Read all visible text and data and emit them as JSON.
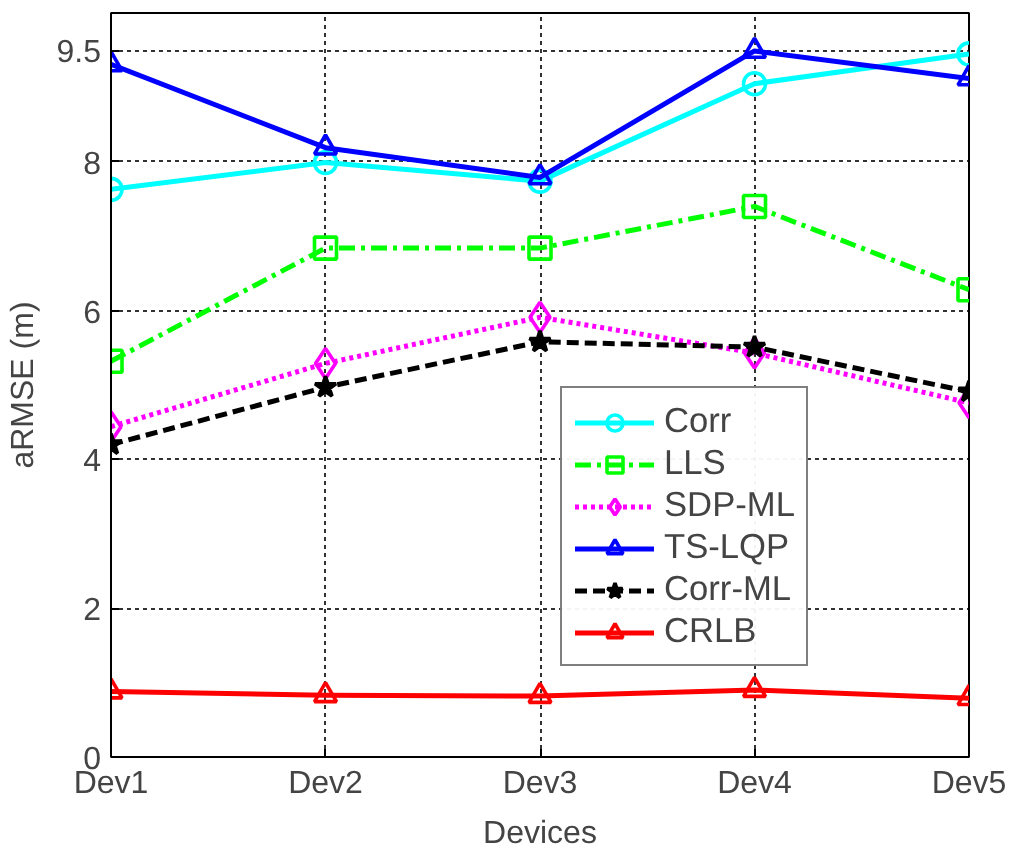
{
  "chart_data": {
    "type": "line",
    "xlabel": "Devices",
    "ylabel": "aRMSE (m)",
    "categories": [
      "Dev1",
      "Dev2",
      "Dev3",
      "Dev4",
      "Dev5"
    ],
    "ylim": [
      0,
      10
    ],
    "yticks": [
      0,
      2,
      4,
      6,
      8,
      9.5
    ],
    "grid": true,
    "legend": "right",
    "series": [
      {
        "name": "Corr",
        "color": "#00ffff",
        "marker": "circle",
        "line_style": "solid",
        "values": [
          7.63,
          7.99,
          7.74,
          9.05,
          9.45
        ]
      },
      {
        "name": "LLS",
        "color": "#00ff00",
        "marker": "square",
        "line_style": "dashdot",
        "values": [
          5.32,
          6.84,
          6.84,
          7.4,
          6.28
        ]
      },
      {
        "name": "SDP-ML",
        "color": "#ff00ff",
        "marker": "diamond",
        "line_style": "dotted",
        "values": [
          4.44,
          5.29,
          5.91,
          5.43,
          4.76
        ]
      },
      {
        "name": "TS-LQP",
        "color": "#0000ff",
        "marker": "triangle",
        "line_style": "solid",
        "values": [
          9.31,
          8.19,
          7.79,
          9.49,
          9.12
        ]
      },
      {
        "name": "Corr-ML",
        "color": "#000000",
        "marker": "star",
        "line_style": "dashed",
        "values": [
          4.2,
          4.97,
          5.58,
          5.51,
          4.91
        ]
      },
      {
        "name": "CRLB",
        "color": "#ff0000",
        "marker": "triangle",
        "line_style": "solid",
        "values": [
          0.88,
          0.83,
          0.82,
          0.9,
          0.79
        ]
      }
    ]
  }
}
